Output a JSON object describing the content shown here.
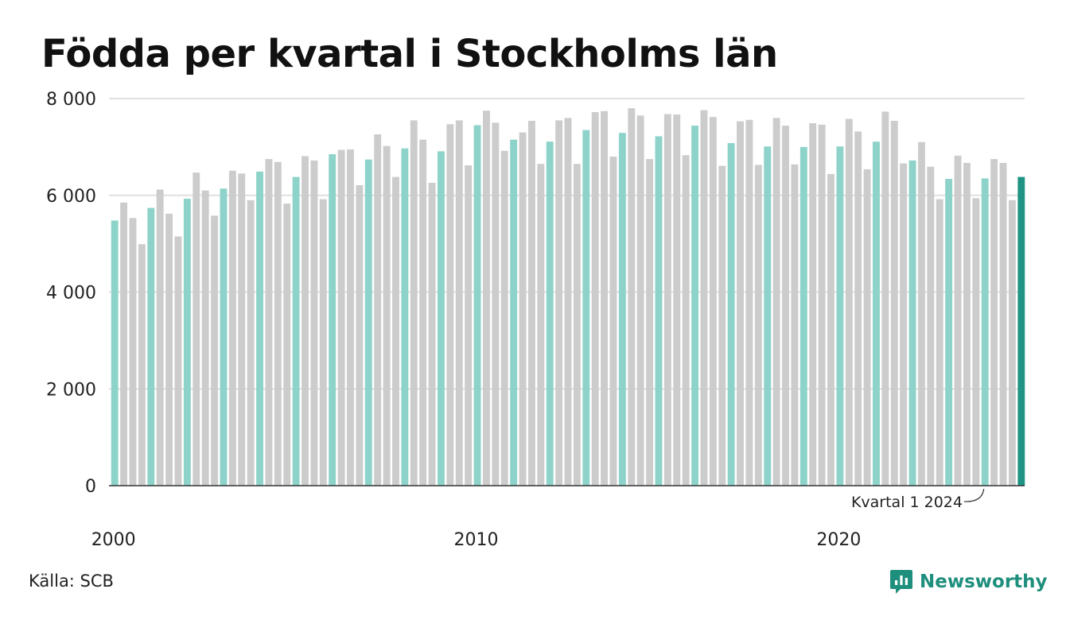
{
  "title": "Födda per kvartal i Stockholms län",
  "source": "Källa: SCB",
  "brand": "Newsworthy",
  "colors": {
    "highlight_q1": "#8dd3c9",
    "other": "#cccccc",
    "latest": "#1f9484",
    "grid": "#e0e0e0",
    "axis": "#333333",
    "brand": "#1f8f7d"
  },
  "chart_data": {
    "type": "bar",
    "title": "Födda per kvartal i Stockholms län",
    "xlabel": "",
    "ylabel": "",
    "ylim": [
      0,
      8000
    ],
    "y_ticks": [
      0,
      2000,
      4000,
      6000,
      8000
    ],
    "y_tick_labels": [
      "0",
      "2 000",
      "4 000",
      "6 000",
      "8 000"
    ],
    "x_tick_labels": [
      "2000",
      "2010",
      "2020"
    ],
    "x_tick_years": [
      2000,
      2010,
      2020
    ],
    "grid": true,
    "annotation": {
      "text": "Kvartal 1 2024",
      "target": "2024 Q1"
    },
    "start_year": 2000,
    "quarters_per_year": 4,
    "values": [
      5480,
      5850,
      5530,
      4990,
      5740,
      6120,
      5620,
      5150,
      5930,
      6470,
      6100,
      5580,
      6140,
      6510,
      6450,
      5900,
      6490,
      6750,
      6690,
      5830,
      6380,
      6810,
      6720,
      5920,
      6850,
      6940,
      6950,
      6210,
      6740,
      7260,
      7020,
      6380,
      6970,
      7550,
      7150,
      6260,
      6910,
      7470,
      7550,
      6620,
      7450,
      7750,
      7500,
      6920,
      7150,
      7300,
      7540,
      6650,
      7110,
      7550,
      7600,
      6650,
      7350,
      7720,
      7740,
      6800,
      7290,
      7800,
      7650,
      6750,
      7220,
      7680,
      7670,
      6830,
      7440,
      7760,
      7620,
      6610,
      7080,
      7530,
      7560,
      6630,
      7010,
      7600,
      7440,
      6640,
      7000,
      7490,
      7460,
      6440,
      7010,
      7580,
      7320,
      6540,
      7110,
      7730,
      7540,
      6660,
      6720,
      7100,
      6590,
      5920,
      6340,
      6820,
      6670,
      5940,
      6350,
      6750,
      6670,
      5900,
      6380
    ]
  }
}
